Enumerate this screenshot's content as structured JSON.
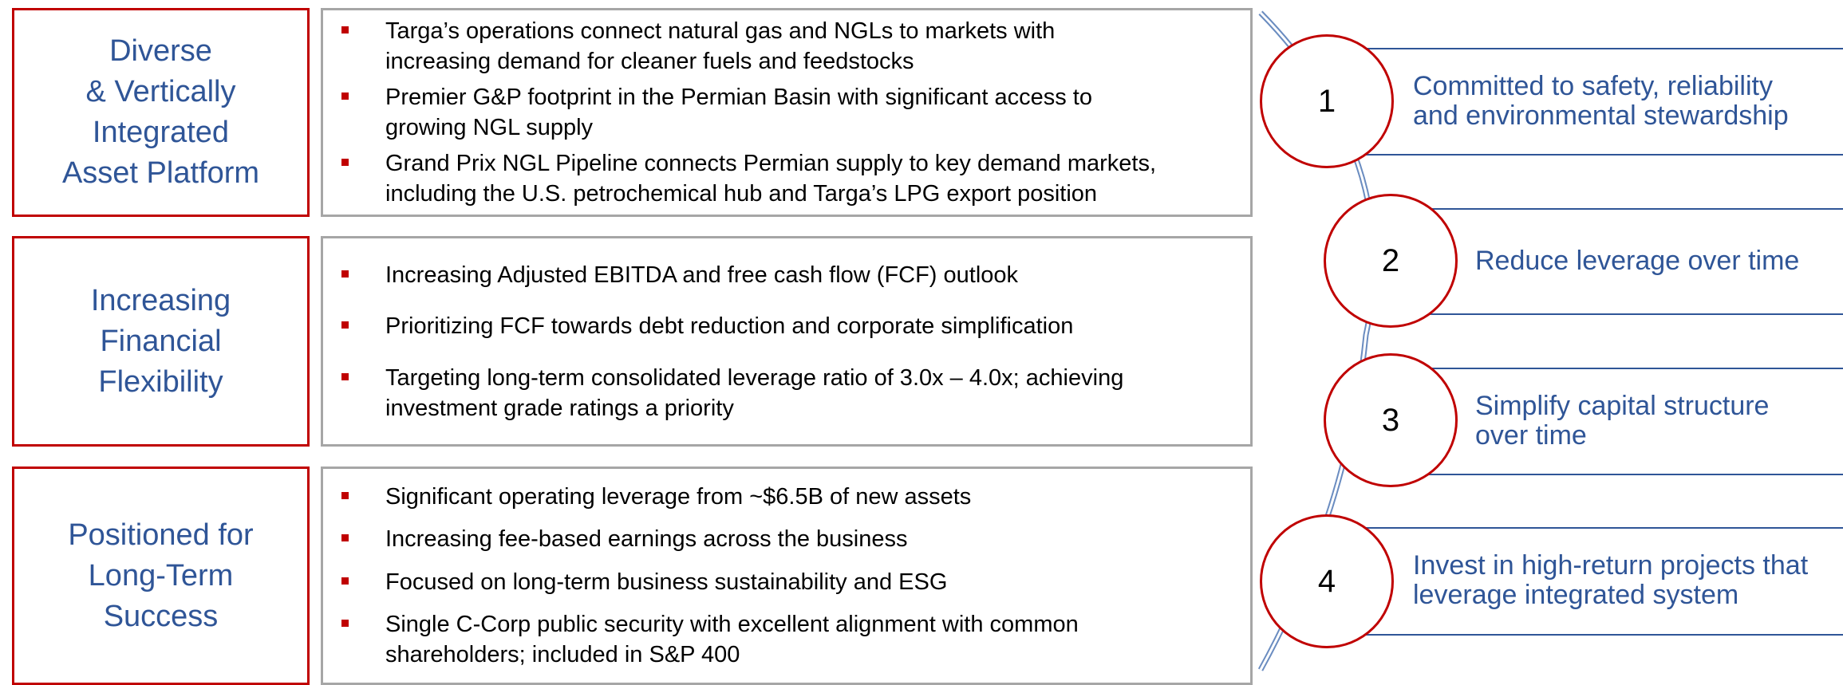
{
  "rows": [
    {
      "label": "Diverse\n& Vertically\nIntegrated\nAsset Platform",
      "bullets": [
        "Targa’s operations connect natural gas and NGLs to markets with\nincreasing demand for cleaner fuels and feedstocks",
        "Premier G&P footprint in the Permian Basin with significant access to\ngrowing NGL supply",
        "Grand Prix NGL Pipeline connects Permian supply to key demand markets,\nincluding the U.S. petrochemical hub and Targa’s LPG export position"
      ]
    },
    {
      "label": "Increasing\nFinancial\nFlexibility",
      "bullets": [
        "Increasing Adjusted EBITDA and free cash flow (FCF) outlook",
        "Prioritizing FCF towards debt reduction and corporate simplification",
        "Targeting long-term consolidated leverage ratio of 3.0x – 4.0x; achieving\ninvestment grade ratings a priority"
      ]
    },
    {
      "label": "Positioned for\nLong-Term\nSuccess",
      "bullets": [
        "Significant operating leverage from ~$6.5B of new assets",
        "Increasing fee-based earnings across the business",
        "Focused on long-term business sustainability and ESG",
        "Single C-Corp public security with excellent alignment with common\nshareholders; included in S&P 400"
      ]
    }
  ],
  "pillars": [
    {
      "number": "1",
      "text": "Committed to safety, reliability\nand environmental stewardship"
    },
    {
      "number": "2",
      "text": "Reduce leverage over time"
    },
    {
      "number": "3",
      "text": "Simplify capital structure\nover time"
    },
    {
      "number": "4",
      "text": "Invest in high-return projects that\nleverage integrated system"
    }
  ]
}
